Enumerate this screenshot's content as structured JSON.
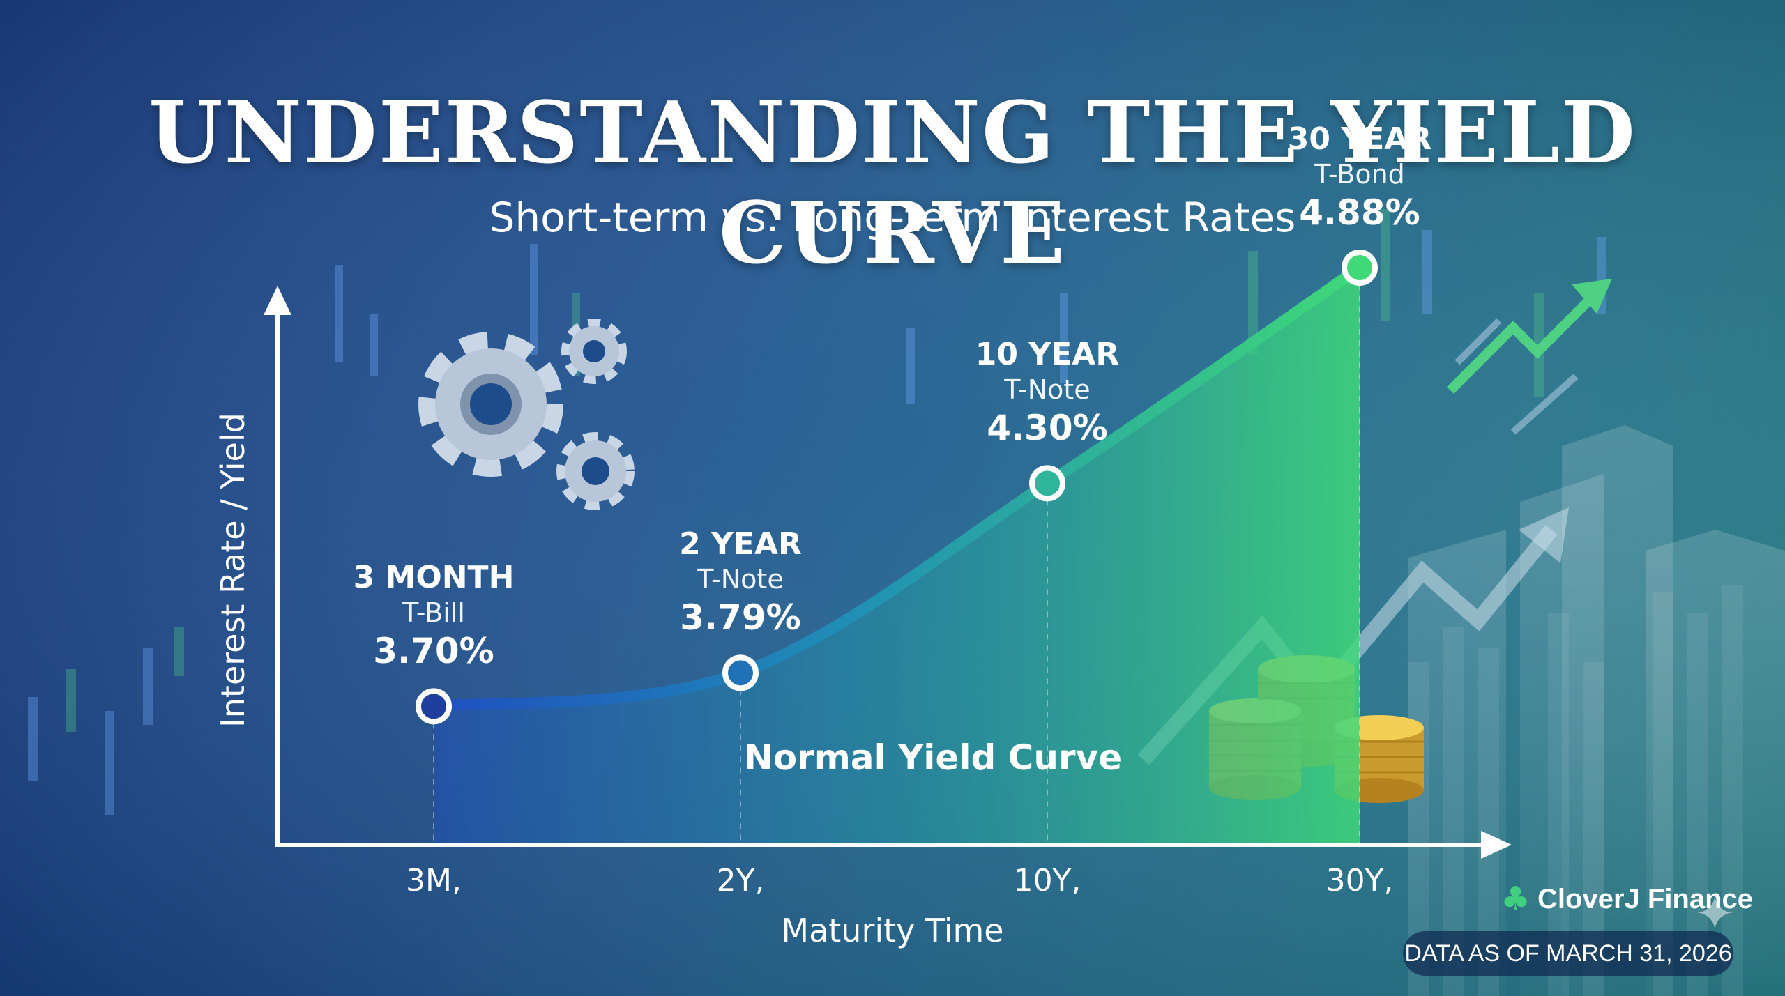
{
  "header": {
    "title": "UNDERSTANDING THE YIELD CURVE",
    "subtitle": "Short-term vs. Long-term Interest Rates"
  },
  "chart_data": {
    "type": "line",
    "title": "UNDERSTANDING THE YIELD CURVE",
    "subtitle": "Short-term vs. Long-term Interest Rates",
    "xlabel": "Maturity Time",
    "ylabel": "Interest Rate / Yield",
    "categories": [
      "3M,",
      "2Y,",
      "10Y,",
      "30Y,"
    ],
    "series": [
      {
        "name": "Normal Yield Curve",
        "values": [
          3.7,
          3.79,
          4.3,
          4.88
        ]
      }
    ],
    "points": [
      {
        "term": "3 MONTH",
        "instrument": "T-Bill",
        "value_label": "3.70%"
      },
      {
        "term": "2 YEAR",
        "instrument": "T-Note",
        "value_label": "3.79%"
      },
      {
        "term": "10 YEAR",
        "instrument": "T-Note",
        "value_label": "4.30%"
      },
      {
        "term": "30 YEAR",
        "instrument": "T-Bond",
        "value_label": "4.88%"
      }
    ],
    "curve_label": "Normal Yield Curve",
    "grid": false,
    "legend": "none"
  },
  "footer": {
    "brand": "CloverJ Finance",
    "brand_icon": "clover-icon",
    "date_badge": "DATA AS OF MARCH 31, 2026"
  },
  "colors": {
    "curve_start": "#1f4fc0",
    "curve_end": "#3fd978",
    "axis": "#ffffff",
    "coin": "#e6b434"
  }
}
